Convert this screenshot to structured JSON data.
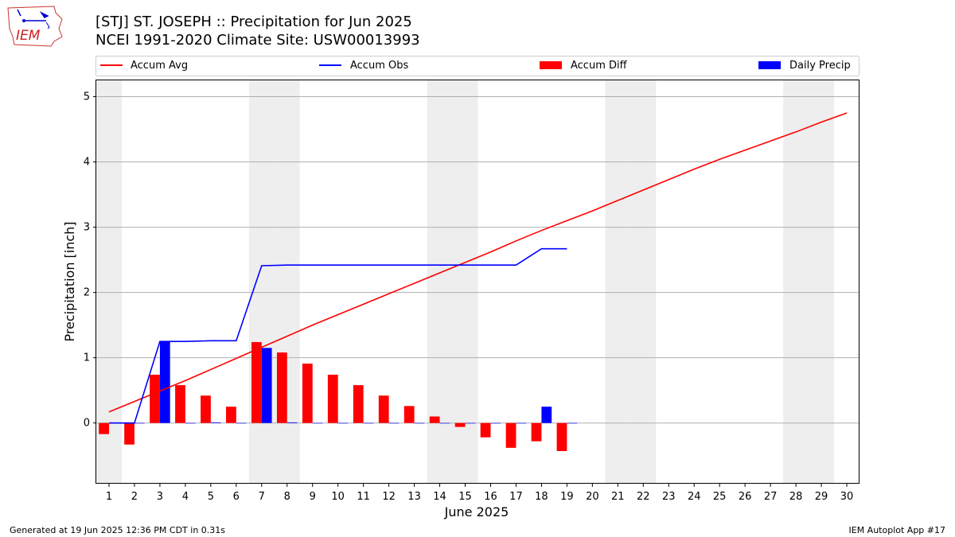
{
  "header": {
    "title_line1": "[STJ] ST. JOSEPH :: Precipitation for Jun 2025",
    "title_line2": "NCEI 1991-2020 Climate Site: USW00013993",
    "logo_text": "IEM"
  },
  "footer": {
    "generated": "Generated at 19 Jun 2025 12:36 PM CDT in 0.31s",
    "app": "IEM Autoplot App #17"
  },
  "colors": {
    "avg": "#ff0000",
    "obs": "#0000ff",
    "diff": "#ff0000",
    "daily": "#0000ff",
    "weekend": "#eeeeee",
    "grid": "#b0b0b0"
  },
  "chart_data": {
    "type": "bar",
    "xlabel": "June 2025",
    "ylabel": "Precipitation [inch]",
    "xlim": [
      0.5,
      30.5
    ],
    "ylim": [
      -0.93,
      5.25
    ],
    "y_ticks": [
      0,
      1,
      2,
      3,
      4,
      5
    ],
    "x_ticks": [
      1,
      2,
      3,
      4,
      5,
      6,
      7,
      8,
      9,
      10,
      11,
      12,
      13,
      14,
      15,
      16,
      17,
      18,
      19,
      20,
      21,
      22,
      23,
      24,
      25,
      26,
      27,
      28,
      29,
      30
    ],
    "grid": "horizontal",
    "legend_placement": "top",
    "weekend_days": [
      1,
      7,
      8,
      14,
      15,
      21,
      22,
      28,
      29
    ],
    "legend": [
      {
        "label": "Accum Avg",
        "kind": "line",
        "key": "avg"
      },
      {
        "label": "Accum Obs",
        "kind": "line",
        "key": "obs"
      },
      {
        "label": "Accum Diff",
        "kind": "bar",
        "key": "diff"
      },
      {
        "label": "Daily Precip",
        "kind": "bar",
        "key": "daily"
      }
    ],
    "series": [
      {
        "name": "Accum Avg",
        "type": "line",
        "x": [
          1,
          2,
          3,
          4,
          5,
          6,
          7,
          8,
          9,
          10,
          11,
          12,
          13,
          14,
          15,
          16,
          17,
          18,
          19,
          20,
          21,
          22,
          23,
          24,
          25,
          26,
          27,
          28,
          29,
          30
        ],
        "values": [
          0.17,
          0.33,
          0.49,
          0.65,
          0.82,
          0.99,
          1.16,
          1.33,
          1.5,
          1.66,
          1.82,
          1.98,
          2.14,
          2.3,
          2.46,
          2.62,
          2.79,
          2.95,
          3.1,
          3.25,
          3.41,
          3.57,
          3.73,
          3.89,
          4.04,
          4.18,
          4.32,
          4.46,
          4.61,
          4.75
        ]
      },
      {
        "name": "Accum Obs",
        "type": "line",
        "x": [
          1,
          2,
          3,
          4,
          5,
          6,
          7,
          8,
          9,
          10,
          11,
          12,
          13,
          14,
          15,
          16,
          17,
          18,
          19
        ],
        "values": [
          0.0,
          0.0,
          1.25,
          1.25,
          1.26,
          1.26,
          2.41,
          2.42,
          2.42,
          2.42,
          2.42,
          2.42,
          2.42,
          2.42,
          2.42,
          2.42,
          2.42,
          2.67,
          2.67
        ]
      },
      {
        "name": "Accum Diff",
        "type": "bar",
        "x": [
          1,
          2,
          3,
          4,
          5,
          6,
          7,
          8,
          9,
          10,
          11,
          12,
          13,
          14,
          15,
          16,
          17,
          18,
          19
        ],
        "values": [
          -0.17,
          -0.33,
          0.74,
          0.58,
          0.42,
          0.25,
          1.24,
          1.08,
          0.91,
          0.74,
          0.58,
          0.42,
          0.26,
          0.1,
          -0.06,
          -0.22,
          -0.38,
          -0.28,
          -0.43
        ]
      },
      {
        "name": "Daily Precip",
        "type": "bar",
        "x": [
          1,
          2,
          3,
          4,
          5,
          6,
          7,
          8,
          9,
          10,
          11,
          12,
          13,
          14,
          15,
          16,
          17,
          18,
          19
        ],
        "values": [
          0.0,
          0.0,
          1.25,
          0.0,
          0.01,
          0.0,
          1.15,
          0.01,
          0.0,
          0.0,
          0.0,
          0.0,
          0.0,
          0.0,
          0.0,
          0.0,
          0.0,
          0.25,
          0.0
        ]
      }
    ]
  }
}
